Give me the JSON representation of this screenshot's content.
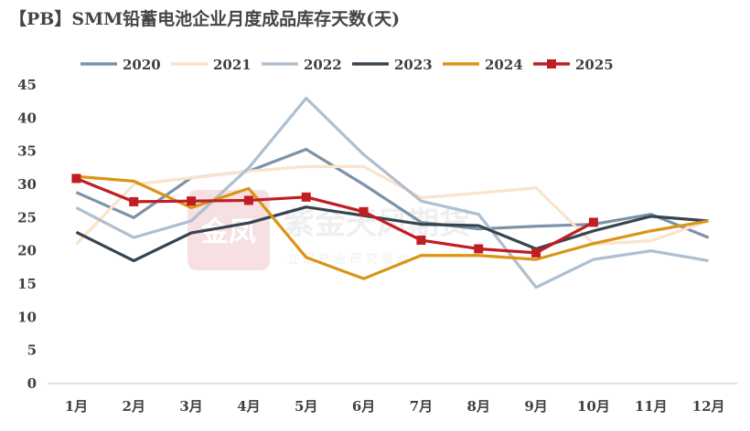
{
  "title": "【PB】SMM铅蓄电池企业月度成品库存天数(天)",
  "watermark": {
    "name": "紫金天风期货",
    "slogan": "立 足 产 业   研 究 驱 动",
    "seal": "金凤"
  },
  "chart_data": {
    "type": "line",
    "title": "【PB】SMM铅蓄电池企业月度成品库存天数(天)",
    "xlabel": "",
    "ylabel": "",
    "ylim": [
      0,
      45
    ],
    "yticks": [
      0,
      5,
      10,
      15,
      20,
      25,
      30,
      35,
      40,
      45
    ],
    "categories": [
      "1月",
      "2月",
      "3月",
      "4月",
      "5月",
      "6月",
      "7月",
      "8月",
      "9月",
      "10月",
      "11月",
      "12月"
    ],
    "legend_position": "top",
    "series": [
      {
        "name": "2020",
        "color": "#7a93a8",
        "marker": false,
        "values": [
          28.8,
          25.0,
          31.0,
          32.0,
          35.3,
          30.0,
          24.3,
          23.3,
          23.7,
          24.0,
          25.5,
          22.0
        ]
      },
      {
        "name": "2021",
        "color": "#fbe3cc",
        "marker": false,
        "values": [
          21.0,
          30.0,
          31.0,
          32.0,
          32.7,
          32.7,
          28.0,
          28.7,
          29.5,
          21.0,
          21.5,
          24.5
        ]
      },
      {
        "name": "2022",
        "color": "#adbfd0",
        "marker": false,
        "values": [
          26.5,
          22.0,
          24.5,
          32.5,
          43.0,
          34.5,
          27.5,
          25.5,
          14.5,
          18.7,
          20.0,
          18.5
        ]
      },
      {
        "name": "2023",
        "color": "#36444f",
        "marker": false,
        "values": [
          22.8,
          18.5,
          22.7,
          24.2,
          26.6,
          25.3,
          24.0,
          23.8,
          20.3,
          23.0,
          25.2,
          24.5
        ]
      },
      {
        "name": "2024",
        "color": "#db9415",
        "marker": false,
        "values": [
          31.2,
          30.5,
          26.5,
          29.4,
          19.0,
          15.8,
          19.3,
          19.3,
          18.7,
          21.1,
          23.0,
          24.5
        ]
      },
      {
        "name": "2025",
        "color": "#c01d25",
        "marker": true,
        "values": [
          30.9,
          27.4,
          27.5,
          27.6,
          28.1,
          25.9,
          21.6,
          20.3,
          19.7,
          24.3,
          null,
          null
        ]
      }
    ]
  }
}
